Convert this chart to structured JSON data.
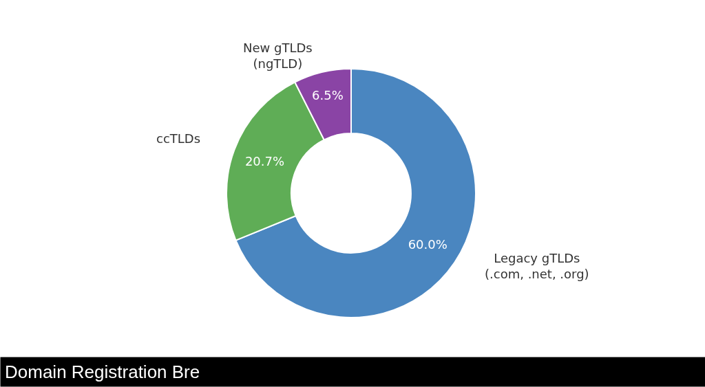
{
  "chart_data": {
    "type": "donut",
    "categories": [
      "Legacy gTLDs\n(.com, .net, .org)",
      "ccTLDs",
      "New gTLDs\n(ngTLD)"
    ],
    "values": [
      60.0,
      20.7,
      6.5
    ],
    "value_labels": [
      "60.0%",
      "20.7%",
      "6.5%"
    ],
    "colors": [
      "#4a86c0",
      "#5fad56",
      "#8a44a5"
    ],
    "annotations": [
      "Domain Registration Bre"
    ],
    "legend": false
  }
}
